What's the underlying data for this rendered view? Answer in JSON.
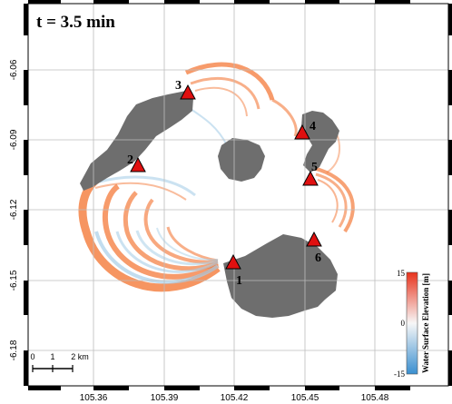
{
  "time_label": "t = 3.5 min",
  "x_ticks": [
    "105.36",
    "105.39",
    "105.42",
    "105.45",
    "105.48"
  ],
  "y_ticks": [
    "-6.06",
    "-6.09",
    "-6.12",
    "-6.15",
    "-6.18"
  ],
  "stations": [
    {
      "id": "1",
      "label": "1"
    },
    {
      "id": "2",
      "label": "2"
    },
    {
      "id": "3",
      "label": "3"
    },
    {
      "id": "4",
      "label": "4"
    },
    {
      "id": "5",
      "label": "5"
    },
    {
      "id": "6",
      "label": "6"
    }
  ],
  "colorbar": {
    "title": "Water Surface Elevation [m]",
    "max_label": "15",
    "mid_label": "0",
    "min_label": "-15",
    "colors": {
      "high": "#e8331c",
      "mid": "#f7f7f7",
      "low": "#3a8fd0"
    }
  },
  "scale_bar": {
    "labels": [
      "0",
      "1",
      "2 km"
    ]
  },
  "colors": {
    "land": "#6e6e6e",
    "wave_positive": "#f47a3a",
    "wave_negative": "#a8cfe8",
    "marker": "#e01010"
  }
}
